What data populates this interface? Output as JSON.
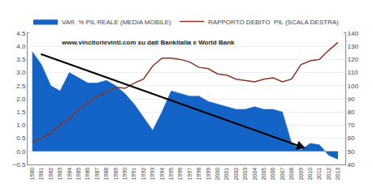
{
  "chart_data": {
    "type": "line",
    "x": [
      1980,
      1981,
      1982,
      1983,
      1984,
      1985,
      1986,
      1987,
      1988,
      1989,
      1990,
      1991,
      1992,
      1993,
      1994,
      1995,
      1996,
      1997,
      1998,
      1999,
      2000,
      2001,
      2002,
      2003,
      2004,
      2005,
      2006,
      2007,
      2008,
      2009,
      2010,
      2011,
      2012,
      2013
    ],
    "xlim": [
      1979.5,
      2013.8
    ],
    "xticks": [
      1980,
      1981,
      1982,
      1983,
      1984,
      1985,
      1986,
      1987,
      1988,
      1989,
      1990,
      1991,
      1992,
      1993,
      1994,
      1995,
      1996,
      1997,
      1998,
      1999,
      2000,
      2001,
      2002,
      2003,
      2004,
      2005,
      2006,
      2007,
      2008,
      2009,
      2010,
      2011,
      2012,
      2013
    ],
    "ylim": [
      -0.5,
      4.5
    ],
    "yticks": [
      {
        "value": -0.5,
        "label": "−0.5"
      },
      {
        "value": 0,
        "label": "0.0"
      },
      0.5,
      {
        "value": 1,
        "label": "1.0"
      },
      1.5,
      {
        "value": 2,
        "label": "2.0"
      },
      2.5,
      {
        "value": 3,
        "label": "3.0"
      },
      3.5,
      {
        "value": 4,
        "label": "4.0"
      },
      4.5
    ],
    "y2lim": [
      40,
      140
    ],
    "y2ticks": [
      40,
      50,
      60,
      70,
      80,
      90,
      100,
      110,
      120,
      130,
      140
    ],
    "grid": true,
    "legend": "top",
    "series": [
      {
        "name": "VAR. % PIL REALE (MEDIA MOBILE)",
        "type": "area",
        "color": "#1464c8",
        "values": [
          3.8,
          3.3,
          2.5,
          2.3,
          3.0,
          2.8,
          2.6,
          2.6,
          2.7,
          2.5,
          2.2,
          1.8,
          1.3,
          0.8,
          1.5,
          2.3,
          2.2,
          2.1,
          2.1,
          1.9,
          1.8,
          1.7,
          1.6,
          1.6,
          1.7,
          1.6,
          1.6,
          1.5,
          0.3,
          0.05,
          0.3,
          0.25,
          -0.15,
          -0.3
        ]
      },
      {
        "name": "RAPPORTO DEBITO  PIL (SCALA DESTRA)",
        "type": "line",
        "color": "#8b3525",
        "axis": "y2",
        "values": [
          57,
          60,
          64,
          70,
          75,
          82,
          87,
          92,
          95,
          99,
          98,
          102,
          105,
          115,
          121,
          121,
          120,
          118,
          114,
          113,
          109,
          108,
          105,
          104,
          103,
          105,
          106,
          103,
          105,
          116,
          119,
          120,
          127,
          133
        ]
      }
    ],
    "annotations": [
      {
        "text": "www.vincitorievinti.com su dati Bankitalia e World Bank"
      },
      {
        "arrow": {
          "x_start": 1980.8,
          "y_start": 3.72,
          "x": 2009.5,
          "y": 0.12,
          "color": "#000000"
        }
      }
    ]
  }
}
